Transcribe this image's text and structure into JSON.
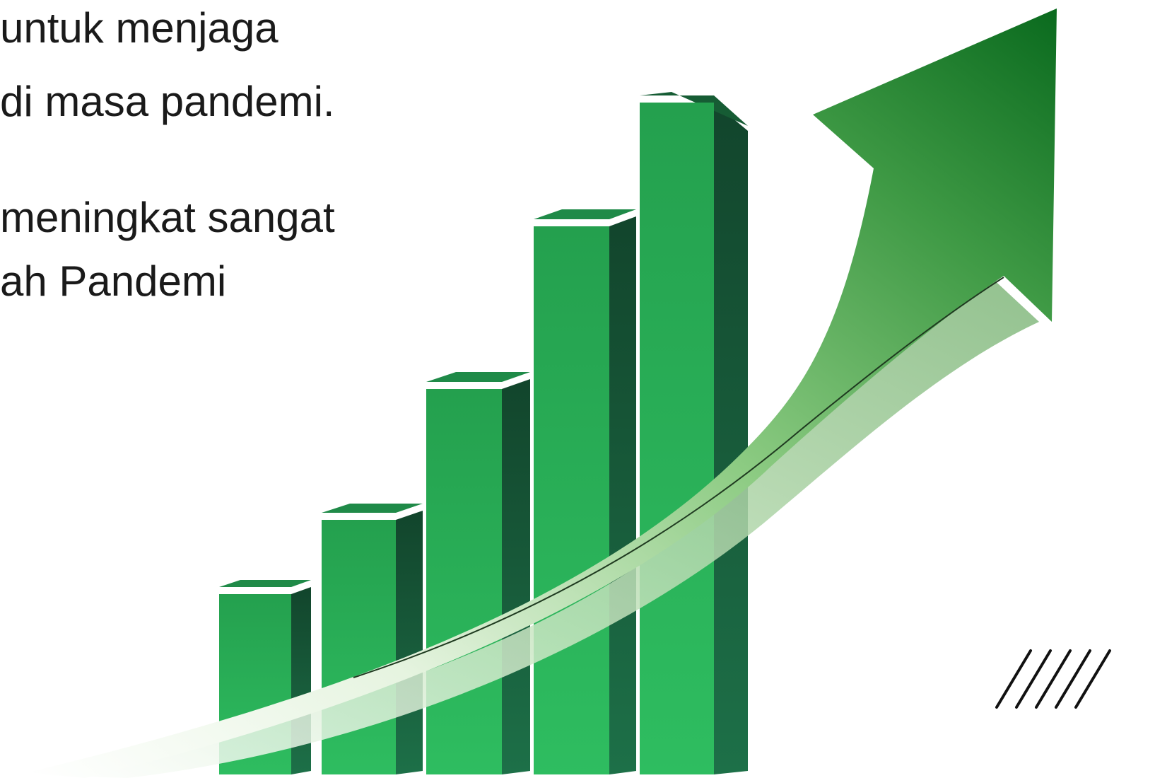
{
  "slide": {
    "lines": [
      "untuk menjaga",
      "di masa pandemi.",
      "meningkat sangat",
      "ah Pandemi"
    ]
  },
  "colors": {
    "bar_front": "#2db55d",
    "bar_side": "#1c6e45",
    "bar_top": "#1f8a48",
    "arrow_dark": "#0c6b20",
    "arrow_light": "#e9f6e4",
    "stripes": "#111111"
  },
  "icons": {
    "graphic": "growth-chart-arrow-illustration",
    "decoration": "diagonal-stripes"
  }
}
